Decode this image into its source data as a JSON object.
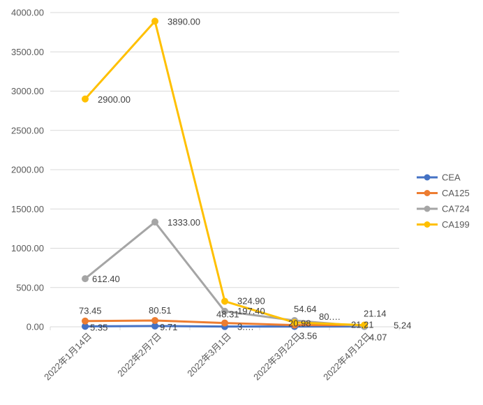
{
  "chart_data": {
    "type": "line",
    "title": "",
    "xlabel": "",
    "ylabel": "",
    "categories": [
      "2022年1月14日",
      "2022年2月7日",
      "2022年3月1日",
      "2022年3月22日",
      "2022年4月12日"
    ],
    "ylim": [
      0,
      4000
    ],
    "yticks": [
      "0.00",
      "500.00",
      "1000.00",
      "1500.00",
      "2000.00",
      "2500.00",
      "3000.00",
      "3500.00",
      "4000.00"
    ],
    "grid": true,
    "legend_position": "right",
    "series": [
      {
        "name": "CEA",
        "color": "#4472C4",
        "values": [
          5.35,
          9.71,
          3.0,
          3.56,
          4.07
        ],
        "labels": [
          "5.35",
          "9.71",
          "3.…",
          "3.56",
          "4.07"
        ]
      },
      {
        "name": "CA125",
        "color": "#ED7D31",
        "values": [
          73.45,
          80.51,
          48.31,
          20.98,
          21.21
        ],
        "labels": [
          "73.45",
          "80.51",
          "48.31",
          "20.98",
          "21.21"
        ]
      },
      {
        "name": "CA724",
        "color": "#A5A5A5",
        "values": [
          612.4,
          1333.0,
          197.4,
          80.0,
          5.24
        ],
        "labels": [
          "612.40",
          "1333.00",
          "197.40",
          "80.…",
          "5.24"
        ]
      },
      {
        "name": "CA199",
        "color": "#FFC000",
        "values": [
          2900.0,
          3890.0,
          324.9,
          54.64,
          21.14
        ],
        "labels": [
          "2900.00",
          "3890.00",
          "324.90",
          "54.64",
          "21.14"
        ]
      }
    ]
  }
}
